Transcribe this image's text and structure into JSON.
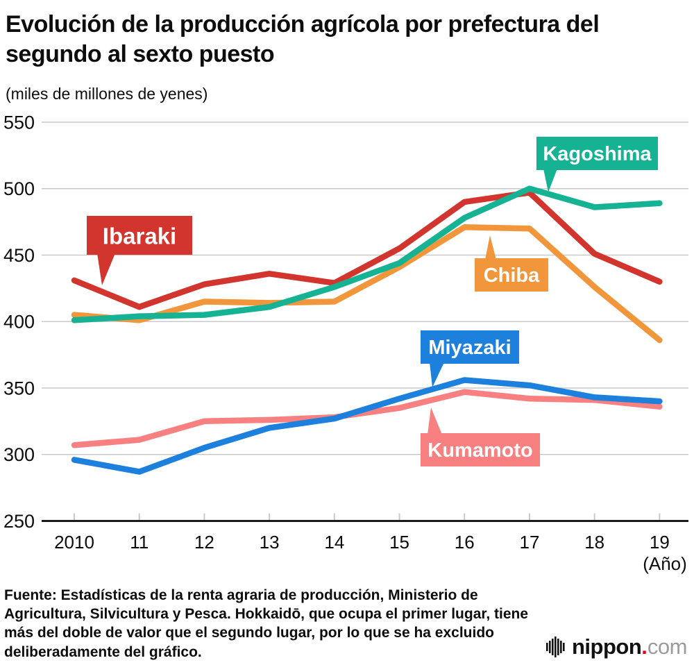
{
  "title": "Evolución de la producción agrícola por prefectura del segundo al sexto puesto",
  "units_label": "(miles de millones de yenes)",
  "x_axis_note": "(Año)",
  "source_note": "Fuente: Estadísticas de la renta agraria de producción, Ministerio de Agricultura, Silvicultura y Pesca. Hokkaidō, que ocupa el primer lugar, tiene más del doble de valor que el segundo lugar, por lo que se ha excluido deliberadamente del gráfico.",
  "brand": {
    "name": "nippon",
    "dot": ".",
    "tld": "com"
  },
  "colors": {
    "ibaraki": "#d2342e",
    "kagoshima": "#16b294",
    "chiba": "#f2963b",
    "miyazaki": "#1e80dd",
    "kumamoto": "#f98080",
    "gridline": "#c9c9c9",
    "axis": "#1a1a1a",
    "brand_dot_red": "#e60012"
  },
  "chart_data": {
    "type": "line",
    "title": "Evolución de la producción agrícola por prefectura del segundo al sexto puesto",
    "ylabel": "miles de millones de yenes",
    "xlabel": "Año",
    "x_labels": [
      "2010",
      "11",
      "12",
      "13",
      "14",
      "15",
      "16",
      "17",
      "18",
      "19"
    ],
    "years": [
      2010,
      2011,
      2012,
      2013,
      2014,
      2015,
      2016,
      2017,
      2018,
      2019
    ],
    "ylim": [
      250,
      550
    ],
    "yticks": [
      250,
      300,
      350,
      400,
      450,
      500,
      550
    ],
    "grid": true,
    "legend_position": "callout-labels-on-chart",
    "series": [
      {
        "name": "Ibaraki",
        "color": "#d2342e",
        "values": [
          431,
          411,
          428,
          436,
          429,
          455,
          490,
          497,
          451,
          430
        ]
      },
      {
        "name": "Kagoshima",
        "color": "#16b294",
        "values": [
          401,
          404,
          405,
          411,
          426,
          444,
          478,
          500,
          486,
          489
        ]
      },
      {
        "name": "Chiba",
        "color": "#f2963b",
        "values": [
          405,
          401,
          415,
          414,
          415,
          441,
          471,
          470,
          426,
          386
        ]
      },
      {
        "name": "Miyazaki",
        "color": "#1e80dd",
        "values": [
          296,
          287,
          305,
          320,
          327,
          342,
          356,
          352,
          343,
          340
        ]
      },
      {
        "name": "Kumamoto",
        "color": "#f98080",
        "values": [
          307,
          311,
          325,
          326,
          328,
          335,
          347,
          342,
          341,
          336
        ]
      }
    ]
  }
}
